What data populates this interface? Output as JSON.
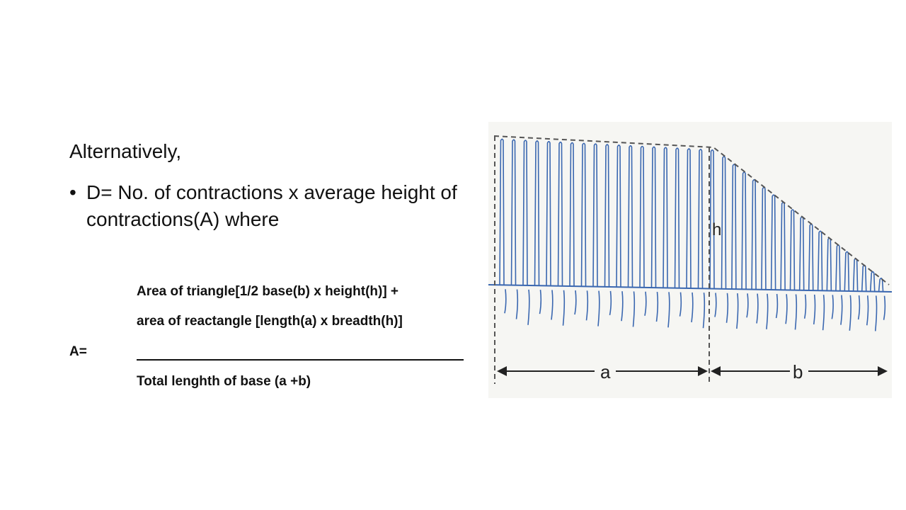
{
  "slide": {
    "heading": "Alternatively,",
    "bullet_symbol": "•",
    "bullet_text": "D= No. of contractions x average height of contractions(A) where",
    "formula": {
      "line1": "Area of triangle[1/2 base(b) x height(h)] +",
      "line2": "area of reactangle [length(a) x breadth(h)]",
      "lhs": "A=",
      "denominator": "Total lenghth of base (a +b)"
    }
  },
  "figure": {
    "label_h": "h",
    "label_a": "a",
    "label_b": "b",
    "trace_color": "#3a67b0",
    "guide_color": "#555555"
  }
}
